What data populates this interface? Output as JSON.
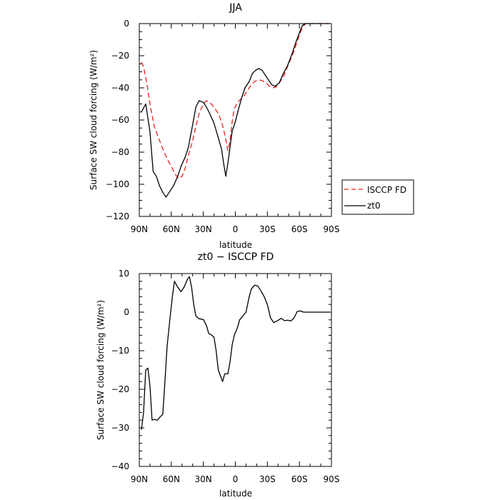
{
  "chart_data": [
    {
      "type": "line",
      "title": "JJA",
      "xlabel": "latitude",
      "ylabel": "Surface SW cloud forcing (W/m²)",
      "xlim": [
        90,
        -90
      ],
      "ylim": [
        -120,
        0
      ],
      "x_ticks": [
        90,
        60,
        30,
        0,
        -30,
        -60,
        -90
      ],
      "x_tick_labels": [
        "90N",
        "60N",
        "30N",
        "0",
        "30S",
        "60S",
        "90S"
      ],
      "y_ticks": [
        0,
        -20,
        -40,
        -60,
        -80,
        -100,
        -120
      ],
      "y_tick_labels": [
        "0",
        "−20",
        "−40",
        "−60",
        "−80",
        "−100",
        "−120"
      ],
      "grid": false,
      "legend_position": "right",
      "series": [
        {
          "name": "ISCCP FD",
          "color": "#e8201c",
          "dash": "dashed",
          "points": [
            [
              88,
              -24
            ],
            [
              86,
              -27
            ],
            [
              83,
              -37
            ],
            [
              80,
              -50
            ],
            [
              76,
              -64
            ],
            [
              72,
              -71
            ],
            [
              68,
              -78
            ],
            [
              64,
              -84
            ],
            [
              60,
              -89
            ],
            [
              56,
              -94
            ],
            [
              53,
              -96.5
            ],
            [
              50,
              -95
            ],
            [
              47,
              -90
            ],
            [
              44,
              -82
            ],
            [
              40,
              -73
            ],
            [
              37,
              -64
            ],
            [
              34,
              -56
            ],
            [
              30,
              -50
            ],
            [
              27,
              -48
            ],
            [
              24,
              -49
            ],
            [
              20,
              -52
            ],
            [
              16,
              -56
            ],
            [
              13,
              -61
            ],
            [
              11,
              -66
            ],
            [
              9,
              -72
            ],
            [
              7,
              -79
            ],
            [
              5,
              -73
            ],
            [
              3,
              -61
            ],
            [
              1,
              -53
            ],
            [
              -2,
              -49
            ],
            [
              -5,
              -47
            ],
            [
              -8,
              -45
            ],
            [
              -11,
              -42
            ],
            [
              -14,
              -39
            ],
            [
              -18,
              -36
            ],
            [
              -22,
              -35
            ],
            [
              -25,
              -35.5
            ],
            [
              -29,
              -37
            ],
            [
              -32,
              -39
            ],
            [
              -35,
              -40
            ],
            [
              -38,
              -39.5
            ],
            [
              -41,
              -37
            ],
            [
              -45,
              -33
            ],
            [
              -50,
              -25
            ],
            [
              -55,
              -17
            ],
            [
              -59,
              -9
            ],
            [
              -63,
              -2
            ],
            [
              -66,
              0
            ],
            [
              -70,
              0
            ],
            [
              -80,
              0
            ],
            [
              -88,
              0
            ]
          ]
        },
        {
          "name": "zt0",
          "color": "#000000",
          "dash": "solid",
          "points": [
            [
              88,
              -55
            ],
            [
              84,
              -50
            ],
            [
              80,
              -67
            ],
            [
              77,
              -92
            ],
            [
              74,
              -95
            ],
            [
              71,
              -101
            ],
            [
              68,
              -105
            ],
            [
              65,
              -108
            ],
            [
              62,
              -105
            ],
            [
              58,
              -101
            ],
            [
              54,
              -95
            ],
            [
              51,
              -89
            ],
            [
              47,
              -83
            ],
            [
              44,
              -77
            ],
            [
              40,
              -63
            ],
            [
              37,
              -52
            ],
            [
              34,
              -48
            ],
            [
              30,
              -49
            ],
            [
              27,
              -52
            ],
            [
              24,
              -56
            ],
            [
              20,
              -62
            ],
            [
              16,
              -71
            ],
            [
              13,
              -78
            ],
            [
              11,
              -87
            ],
            [
              9,
              -95
            ],
            [
              7,
              -87
            ],
            [
              5,
              -77
            ],
            [
              3,
              -67
            ],
            [
              0,
              -61
            ],
            [
              -3,
              -53
            ],
            [
              -6,
              -46
            ],
            [
              -9,
              -40
            ],
            [
              -13,
              -36
            ],
            [
              -16,
              -31
            ],
            [
              -19,
              -29
            ],
            [
              -22,
              -28
            ],
            [
              -25,
              -29
            ],
            [
              -28,
              -32
            ],
            [
              -31,
              -35
            ],
            [
              -34,
              -38
            ],
            [
              -37,
              -39
            ],
            [
              -41,
              -37
            ],
            [
              -45,
              -31
            ],
            [
              -49,
              -26
            ],
            [
              -53,
              -19
            ],
            [
              -57,
              -11
            ],
            [
              -61,
              -4
            ],
            [
              -63,
              -1
            ],
            [
              -66,
              0
            ],
            [
              -70,
              0
            ],
            [
              -80,
              0
            ],
            [
              -88,
              0
            ]
          ]
        }
      ]
    },
    {
      "type": "line",
      "title": "zt0 − ISCCP FD",
      "xlabel": "latitude",
      "ylabel": "Surface SW cloud forcing (W/m²)",
      "xlim": [
        90,
        -90
      ],
      "ylim": [
        -40,
        10
      ],
      "x_ticks": [
        90,
        60,
        30,
        0,
        -30,
        -60,
        -90
      ],
      "x_tick_labels": [
        "90N",
        "60N",
        "30N",
        "0",
        "30S",
        "60S",
        "90S"
      ],
      "y_ticks": [
        10,
        0,
        -10,
        -20,
        -30,
        -40
      ],
      "y_tick_labels": [
        "10",
        "0",
        "−10",
        "−20",
        "−30",
        "−40"
      ],
      "grid": false,
      "series": [
        {
          "color": "#000000",
          "dash": "solid",
          "points": [
            [
              88,
              -30.5
            ],
            [
              86,
              -26
            ],
            [
              84,
              -15
            ],
            [
              82,
              -14.5
            ],
            [
              80,
              -19
            ],
            [
              78,
              -28
            ],
            [
              76,
              -27.8
            ],
            [
              73,
              -28
            ],
            [
              70,
              -27
            ],
            [
              68,
              -26.5
            ],
            [
              66,
              -18
            ],
            [
              64,
              -9
            ],
            [
              61,
              -1
            ],
            [
              59,
              4
            ],
            [
              57,
              8
            ],
            [
              54,
              6.5
            ],
            [
              51,
              5.3
            ],
            [
              48,
              6.5
            ],
            [
              45,
              8.5
            ],
            [
              43,
              9.2
            ],
            [
              41,
              6.5
            ],
            [
              39,
              2
            ],
            [
              37,
              -1
            ],
            [
              34,
              -1.7
            ],
            [
              30,
              -1.9
            ],
            [
              27,
              -3.5
            ],
            [
              25,
              -5.5
            ],
            [
              22,
              -6
            ],
            [
              20,
              -6.5
            ],
            [
              18,
              -10
            ],
            [
              16,
              -15
            ],
            [
              14,
              -16.5
            ],
            [
              12,
              -18
            ],
            [
              10,
              -16
            ],
            [
              7,
              -16
            ],
            [
              5,
              -13
            ],
            [
              3,
              -8.5
            ],
            [
              1,
              -6
            ],
            [
              -2,
              -4
            ],
            [
              -4,
              -2
            ],
            [
              -7,
              -1
            ],
            [
              -10,
              0
            ],
            [
              -13,
              4
            ],
            [
              -15,
              6
            ],
            [
              -18,
              7
            ],
            [
              -21,
              6.8
            ],
            [
              -24,
              5.5
            ],
            [
              -27,
              4
            ],
            [
              -30,
              2
            ],
            [
              -33,
              -1.5
            ],
            [
              -36,
              -2.7
            ],
            [
              -39,
              -2.3
            ],
            [
              -43,
              -1.6
            ],
            [
              -46,
              -2.2
            ],
            [
              -49,
              -2.1
            ],
            [
              -52,
              -2.3
            ],
            [
              -55,
              -1.5
            ],
            [
              -58,
              0.2
            ],
            [
              -61,
              0.3
            ],
            [
              -64,
              0
            ],
            [
              -70,
              0
            ],
            [
              -80,
              0
            ],
            [
              -88,
              0
            ]
          ]
        }
      ]
    }
  ]
}
